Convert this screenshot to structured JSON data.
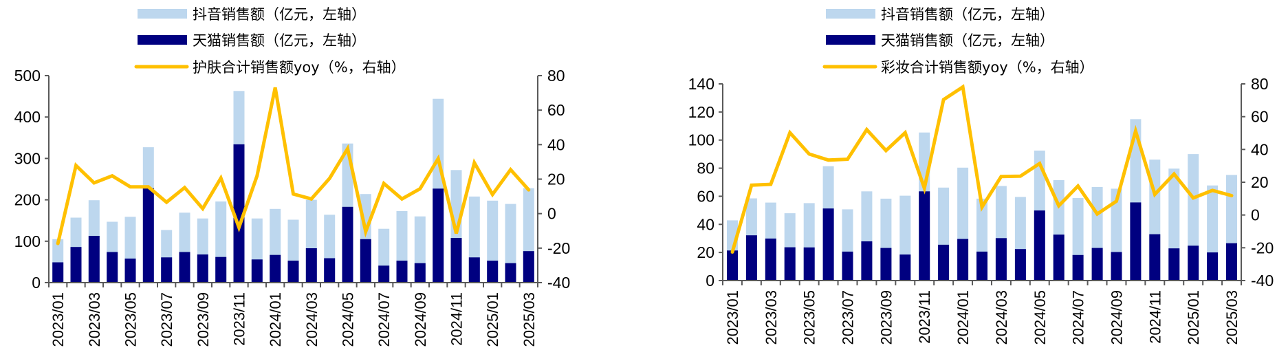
{
  "colors": {
    "douyin": "#bdd7ee",
    "tmall": "#000080",
    "yoy": "#ffc000",
    "axis": "#595959"
  },
  "chart_data": [
    {
      "type": "bar",
      "stacking": "overlap",
      "title": "",
      "categories": [
        "2023/01",
        "2023/02",
        "2023/03",
        "2023/04",
        "2023/05",
        "2023/06",
        "2023/07",
        "2023/08",
        "2023/09",
        "2023/10",
        "2023/11",
        "2023/12",
        "2024/01",
        "2024/02",
        "2024/03",
        "2024/04",
        "2024/05",
        "2024/06",
        "2024/07",
        "2024/08",
        "2024/09",
        "2024/10",
        "2024/11",
        "2024/12",
        "2025/01",
        "2025/02",
        "2025/03"
      ],
      "x_tick_labels": [
        "2023/01",
        "2023/03",
        "2023/05",
        "2023/07",
        "2023/09",
        "2023/11",
        "2024/01",
        "2024/03",
        "2024/05",
        "2024/07",
        "2024/09",
        "2024/11",
        "2025/01",
        "2025/03"
      ],
      "series": [
        {
          "name": "抖音销售额（亿元，左轴）",
          "axis": "left",
          "kind": "bar",
          "values": [
            105,
            157,
            199,
            147,
            159,
            327,
            127,
            169,
            155,
            196,
            463,
            155,
            178,
            152,
            200,
            164,
            336,
            214,
            130,
            173,
            160,
            444,
            272,
            208,
            198,
            190,
            228
          ]
        },
        {
          "name": "天猫销售额（亿元，左轴）",
          "axis": "left",
          "kind": "bar",
          "values": [
            49,
            86,
            113,
            74,
            58,
            228,
            61,
            74,
            68,
            62,
            334,
            56,
            67,
            53,
            83,
            59,
            183,
            105,
            41,
            53,
            47,
            227,
            108,
            61,
            53,
            47,
            76
          ]
        },
        {
          "name": "护肤合计销售额yoy（%，右轴）",
          "axis": "right",
          "kind": "line",
          "values": [
            -17.3,
            27.9,
            17.8,
            21.9,
            15.5,
            15.5,
            6.6,
            15.1,
            2.9,
            20.6,
            -8.0,
            21.9,
            73.1,
            11.4,
            8.5,
            20.4,
            37.7,
            -10.4,
            17.5,
            8.5,
            14.4,
            31.9,
            -11.5,
            29.5,
            11.1,
            25.5,
            13.8
          ]
        }
      ],
      "y_left": {
        "range": [
          0,
          500
        ],
        "ticks": [
          "0",
          "100",
          "200",
          "300",
          "400",
          "500"
        ]
      },
      "y_right": {
        "range": [
          -40,
          80
        ],
        "ticks": [
          "-40",
          "-20",
          "0",
          "20",
          "40",
          "60",
          "80"
        ]
      },
      "legend_position": "top-center",
      "grid": false
    },
    {
      "type": "bar",
      "stacking": "overlap",
      "title": "",
      "categories": [
        "2023/01",
        "2023/02",
        "2023/03",
        "2023/04",
        "2023/05",
        "2023/06",
        "2023/07",
        "2023/08",
        "2023/09",
        "2023/10",
        "2023/11",
        "2023/12",
        "2024/01",
        "2024/02",
        "2024/03",
        "2024/04",
        "2024/05",
        "2024/06",
        "2024/07",
        "2024/08",
        "2024/09",
        "2024/10",
        "2024/11",
        "2024/12",
        "2025/01",
        "2025/02",
        "2025/03"
      ],
      "x_tick_labels": [
        "2023/01",
        "2023/03",
        "2023/05",
        "2023/07",
        "2023/09",
        "2023/11",
        "2024/01",
        "2024/03",
        "2024/05",
        "2024/07",
        "2024/09",
        "2024/11",
        "2025/01",
        "2025/03"
      ],
      "series": [
        {
          "name": "抖音销售额（亿元，左轴）",
          "axis": "left",
          "kind": "bar",
          "values": [
            42.9,
            58.5,
            55.5,
            47.9,
            55.1,
            81.4,
            50.7,
            63.5,
            58.3,
            60.4,
            105.4,
            66.2,
            80.4,
            58.3,
            67.3,
            59.5,
            92.5,
            71.5,
            58.8,
            66.6,
            65.4,
            114.9,
            86.1,
            79.7,
            90.0,
            67.7,
            75.2
          ]
        },
        {
          "name": "天猫销售额（亿元，左轴）",
          "axis": "left",
          "kind": "bar",
          "values": [
            21.4,
            32.2,
            29.9,
            23.7,
            23.6,
            51.3,
            20.6,
            27.9,
            23.2,
            18.5,
            63.5,
            25.5,
            29.6,
            20.6,
            30.2,
            22.4,
            49.9,
            32.7,
            18.2,
            23.2,
            20.3,
            55.6,
            33.0,
            22.9,
            24.8,
            20.0,
            26.6
          ]
        },
        {
          "name": "彩妆合计销售额yoy（%，右轴）",
          "axis": "right",
          "kind": "line",
          "values": [
            -22.6,
            18.2,
            18.7,
            50.2,
            37.2,
            33.5,
            34.0,
            52.1,
            39.3,
            50.2,
            16.4,
            70.4,
            78.1,
            4.8,
            23.5,
            23.7,
            31.4,
            5.6,
            17.7,
            0.6,
            8.4,
            51.2,
            12.6,
            25.0,
            10.4,
            15.0,
            11.8
          ]
        }
      ],
      "y_left": {
        "range": [
          0,
          140
        ],
        "ticks": [
          "0",
          "20",
          "40",
          "60",
          "80",
          "100",
          "120",
          "140"
        ]
      },
      "y_right": {
        "range": [
          -40,
          80
        ],
        "ticks": [
          "-40",
          "-20",
          "0",
          "20",
          "40",
          "60",
          "80"
        ]
      },
      "legend_position": "top-center",
      "grid": false
    }
  ]
}
